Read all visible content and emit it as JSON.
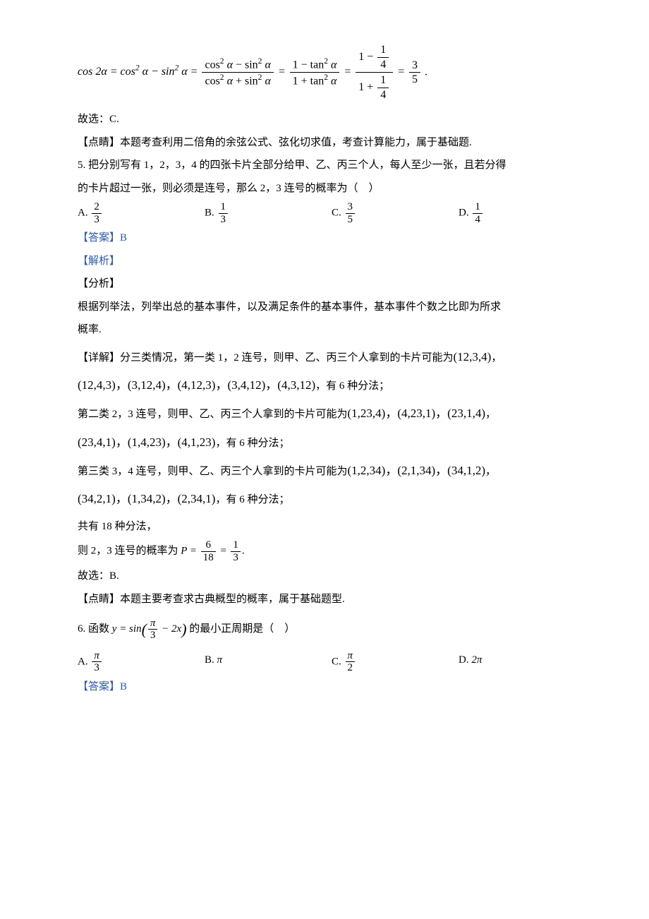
{
  "eq_main": {
    "lhs": "cos 2α = cos² α − sin² α",
    "step1_num": "cos² α − sin² α",
    "step1_den": "cos² α + sin² α",
    "step2_num": "1 − tan² α",
    "step2_den": "1 + tan² α",
    "step3_num_top": "1",
    "step3_num_bot": "4",
    "step3_num_lead": "1 −",
    "step3_den_lead": "1 +",
    "step3_den_top": "1",
    "step3_den_bot": "4",
    "result_num": "3",
    "result_den": "5",
    "end": "."
  },
  "line_select_c": "故选：C.",
  "line_dianjing_4": "【点睛】本题考查利用二倍角的余弦公式、弦化切求值，考查计算能力，属于基础题.",
  "q5_stem1": "5. 把分别写有 1，2，3，4 的四张卡片全部分给甲、乙、丙三个人，每人至少一张，且若分得",
  "q5_stem2": "的卡片超过一张，则必须是连号，那么 2，3 连号的概率为（　）",
  "q5_options": {
    "A": {
      "prefix": "A.",
      "num": "2",
      "den": "3"
    },
    "B": {
      "prefix": "B.",
      "num": "1",
      "den": "3"
    },
    "C": {
      "prefix": "C.",
      "num": "3",
      "den": "5"
    },
    "D": {
      "prefix": "D.",
      "num": "1",
      "den": "4"
    }
  },
  "ans_b": "【答案】B",
  "jiexi": "【解析】",
  "fenxi": "【分析】",
  "q5_fenxi1": "根据列举法，列举出总的基本事件，以及满足条件的基本事件，基本事件个数之比即为所求",
  "q5_fenxi2": "概率.",
  "q5_xj_lead": "【详解】分三类情况，第一类 1，2 连号，则甲、乙、丙三个人拿到的卡片可能为",
  "q5_c1_first": "(12,3,4)",
  "q5_c1_rest": "(12,4,3)，(3,12,4)，(4,12,3)，(3,4,12)，(4,3,12)",
  "q5_c1_tail": "，有 6 种分法；",
  "q5_c2_lead": "第二类 2，3 连号，则甲、乙、丙三个人拿到的卡片可能为",
  "q5_c2_first": "(1,23,4)，(4,23,1)，(23,1,4)",
  "q5_c2_rest": "(23,4,1)，(1,4,23)，(4,1,23)",
  "q5_c2_tail": "，有 6 种分法；",
  "q5_c3_lead": "第三类 3，4 连号，则甲、乙、丙三个人拿到的卡片可能为",
  "q5_c3_first": "(1,2,34)，(2,1,34)，(34,1,2)",
  "q5_c3_rest": "(34,2,1)，(1,34,2)，(2,34,1)",
  "q5_c3_tail": "，有 6 种分法；",
  "q5_total": "共有 18 种分法，",
  "q5_prob_lead": "则 2，3 连号的概率为 ",
  "q5_prob_P": "P",
  "q5_prob_eq": " = ",
  "q5_prob_f1_num": "6",
  "q5_prob_f1_den": "18",
  "q5_prob_f2_num": "1",
  "q5_prob_f2_den": "3",
  "q5_prob_end": ".",
  "line_select_b": "故选：B.",
  "q5_dianjing": "【点睛】本题主要考查求古典概型的概率，属于基础题型.",
  "q6_lead": "6. 函数 ",
  "q6_y": "y",
  "q6_eq": " = sin",
  "q6_inner_frac_num": "π",
  "q6_inner_frac_den": "3",
  "q6_inner_rest": " − 2x",
  "q6_tail": " 的最小正周期是（　）",
  "q6_options": {
    "A": {
      "prefix": "A.",
      "num": "π",
      "den": "3",
      "plain": ""
    },
    "B": {
      "prefix": "B.",
      "plain": "π"
    },
    "C": {
      "prefix": "C.",
      "num": "π",
      "den": "2",
      "plain": ""
    },
    "D": {
      "prefix": "D.",
      "plain": "2π"
    }
  },
  "ans_b2": "【答案】B",
  "colors": {
    "text": "#000000",
    "blue": "#2e5aac",
    "bg": "#ffffff"
  }
}
